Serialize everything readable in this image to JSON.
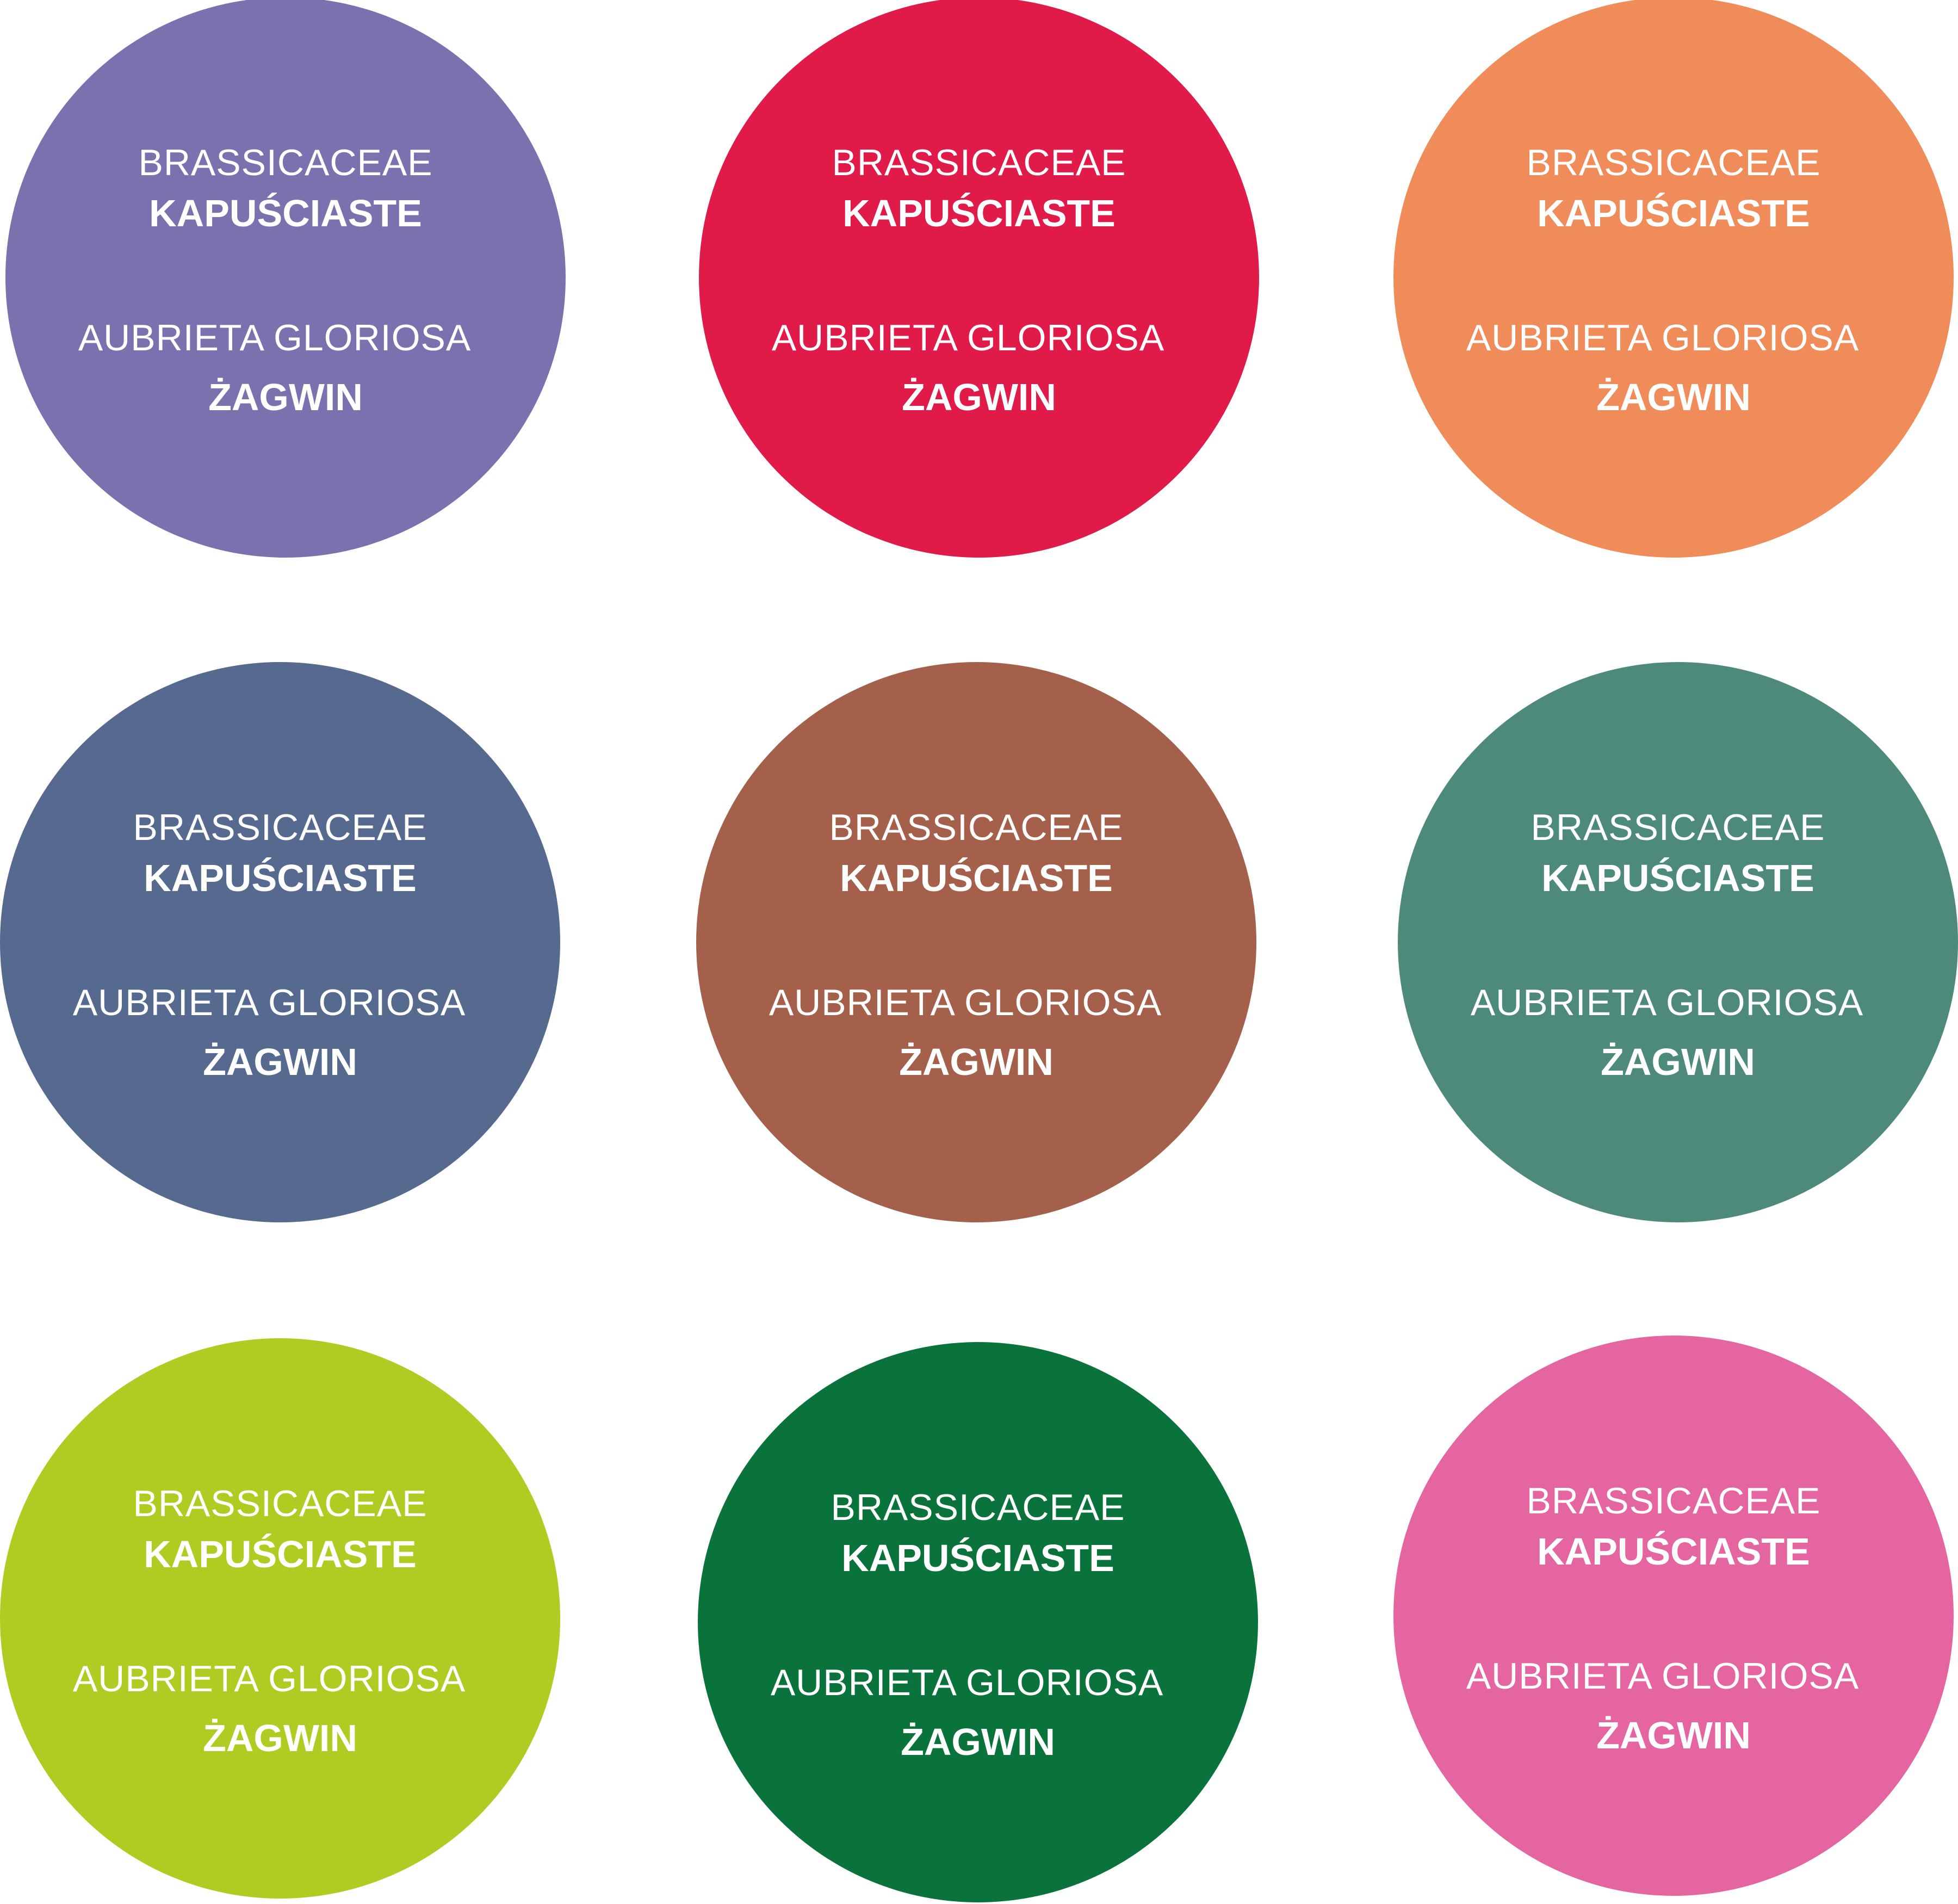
{
  "labels": [
    {
      "color": "#7b71ae",
      "family_latin": "BRASSICACEAE",
      "family_polish": "KAPUŚCIASTE",
      "species_latin": "AUBRIETA GLORIOSA",
      "species_polish": "ŻAGWIN"
    },
    {
      "color": "#e01a49",
      "family_latin": "BRASSICACEAE",
      "family_polish": "KAPUŚCIASTE",
      "species_latin": "AUBRIETA GLORIOSA",
      "species_polish": "ŻAGWIN"
    },
    {
      "color": "#f08c59",
      "family_latin": "BRASSICACEAE",
      "family_polish": "KAPUŚCIASTE",
      "species_latin": "AUBRIETA GLORIOSA",
      "species_polish": "ŻAGWIN"
    },
    {
      "color": "#56698e",
      "family_latin": "BRASSICACEAE",
      "family_polish": "KAPUŚCIASTE",
      "species_latin": "AUBRIETA GLORIOSA",
      "species_polish": "ŻAGWIN"
    },
    {
      "color": "#a5604b",
      "family_latin": "BRASSICACEAE",
      "family_polish": "KAPUŚCIASTE",
      "species_latin": "AUBRIETA GLORIOSA",
      "species_polish": "ŻAGWIN"
    },
    {
      "color": "#4e8a7c",
      "family_latin": "BRASSICACEAE",
      "family_polish": "KAPUŚCIASTE",
      "species_latin": "AUBRIETA GLORIOSA",
      "species_polish": "ŻAGWIN"
    },
    {
      "color": "#b0cc22",
      "family_latin": "BRASSICACEAE",
      "family_polish": "KAPUŚCIASTE",
      "species_latin": "AUBRIETA GLORIOSA",
      "species_polish": "ŻAGWIN"
    },
    {
      "color": "#0a733b",
      "family_latin": "BRASSICACEAE",
      "family_polish": "KAPUŚCIASTE",
      "species_latin": "AUBRIETA GLORIOSA",
      "species_polish": "ŻAGWIN"
    },
    {
      "color": "#e565a1",
      "family_latin": "BRASSICACEAE",
      "family_polish": "KAPUŚCIASTE",
      "species_latin": "AUBRIETA GLORIOSA",
      "species_polish": "ŻAGWIN"
    }
  ]
}
